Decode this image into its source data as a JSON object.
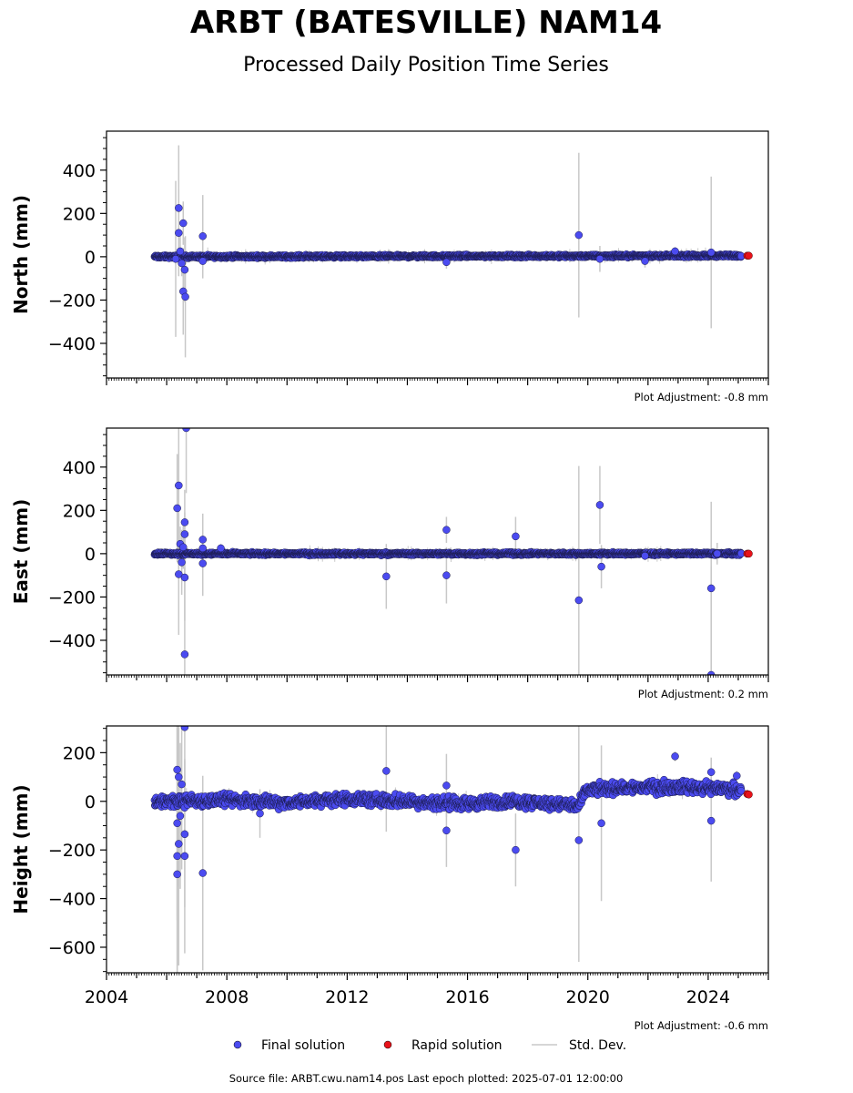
{
  "title": "ARBT (BATESVILLE) NAM14",
  "subtitle": "Processed Daily Position Time Series",
  "colors": {
    "final": "#4b4bf0",
    "rapid": "#e8121a",
    "stddev": "#c8c8c8"
  },
  "chart_data": [
    {
      "type": "scatter",
      "ylabel": "North (mm)",
      "xlim": [
        2004,
        2026
      ],
      "ylim": [
        -560,
        580
      ],
      "yticks": [
        "400",
        "200",
        "0",
        "−200",
        "−400"
      ],
      "ytick_values": [
        400,
        200,
        0,
        -200,
        -400
      ],
      "adjustment": "Plot Adjustment: -0.8 mm",
      "baseline": [
        [
          2005.6,
          0
        ],
        [
          2025.1,
          5
        ]
      ],
      "noise": 3,
      "outliers": [
        [
          2006.4,
          225,
          290
        ],
        [
          2006.4,
          110,
          200
        ],
        [
          2006.55,
          155,
          100
        ],
        [
          2006.55,
          -160,
          200
        ],
        [
          2006.62,
          -185,
          280
        ],
        [
          2006.6,
          -60,
          150
        ],
        [
          2006.5,
          -30,
          60
        ],
        [
          2006.45,
          25,
          70
        ],
        [
          2007.2,
          95,
          190
        ],
        [
          2007.2,
          -20,
          80
        ],
        [
          2006.3,
          -10,
          360
        ],
        [
          2015.3,
          -25,
          30
        ],
        [
          2019.7,
          100,
          380
        ],
        [
          2020.4,
          -10,
          60
        ],
        [
          2021.9,
          -20,
          30
        ],
        [
          2022.9,
          25,
          20
        ],
        [
          2024.1,
          20,
          350
        ]
      ],
      "rapid": [
        [
          2025.3,
          5
        ],
        [
          2025.35,
          5
        ]
      ]
    },
    {
      "type": "scatter",
      "ylabel": "East (mm)",
      "xlim": [
        2004,
        2026
      ],
      "ylim": [
        -560,
        580
      ],
      "yticks": [
        "400",
        "200",
        "0",
        "−200",
        "−400"
      ],
      "ytick_values": [
        400,
        200,
        0,
        -200,
        -400
      ],
      "adjustment": "Plot Adjustment: 0.2 mm",
      "baseline": [
        [
          2005.6,
          0
        ],
        [
          2025.1,
          0
        ]
      ],
      "noise": 3,
      "outliers": [
        [
          2006.65,
          580,
          300
        ],
        [
          2006.4,
          315,
          300
        ],
        [
          2006.35,
          210,
          250
        ],
        [
          2006.6,
          145,
          150
        ],
        [
          2006.6,
          90,
          100
        ],
        [
          2006.45,
          45,
          80
        ],
        [
          2006.55,
          30,
          100
        ],
        [
          2006.4,
          -95,
          280
        ],
        [
          2006.6,
          -110,
          200
        ],
        [
          2006.6,
          -465,
          400
        ],
        [
          2006.5,
          -40,
          150
        ],
        [
          2007.2,
          65,
          120
        ],
        [
          2007.2,
          25,
          60
        ],
        [
          2007.2,
          -45,
          150
        ],
        [
          2007.8,
          25,
          20
        ],
        [
          2013.3,
          -105,
          150
        ],
        [
          2015.3,
          110,
          60
        ],
        [
          2015.3,
          -100,
          130
        ],
        [
          2017.6,
          80,
          90
        ],
        [
          2019.7,
          -215,
          620
        ],
        [
          2020.4,
          225,
          180
        ],
        [
          2020.45,
          -60,
          100
        ],
        [
          2021.9,
          -10,
          20
        ],
        [
          2024.1,
          -160,
          400
        ],
        [
          2024.1,
          -560,
          500
        ],
        [
          2024.3,
          0,
          50
        ]
      ],
      "rapid": [
        [
          2025.3,
          0
        ],
        [
          2025.35,
          0
        ]
      ]
    },
    {
      "type": "scatter",
      "ylabel": "Height (mm)",
      "xlim": [
        2004,
        2026
      ],
      "ylim": [
        -705,
        310
      ],
      "yticks": [
        "200",
        "0",
        "−200",
        "−400",
        "−600"
      ],
      "ytick_values": [
        200,
        0,
        -200,
        -400,
        -600
      ],
      "xticks": [
        "2004",
        "2008",
        "2012",
        "2016",
        "2020",
        "2024"
      ],
      "xtick_values": [
        2004,
        2008,
        2012,
        2016,
        2020,
        2024
      ],
      "adjustment": "Plot Adjustment: -0.6 mm",
      "baseline": [
        [
          2005.6,
          0
        ],
        [
          2008,
          5
        ],
        [
          2010,
          -5
        ],
        [
          2012,
          10
        ],
        [
          2014,
          0
        ],
        [
          2016,
          -10
        ],
        [
          2017.5,
          0
        ],
        [
          2019,
          -10
        ],
        [
          2019.7,
          -20
        ],
        [
          2019.95,
          45
        ],
        [
          2021,
          55
        ],
        [
          2023,
          60
        ],
        [
          2025.1,
          50
        ]
      ],
      "noise": 12,
      "outliers": [
        [
          2006.35,
          130,
          600
        ],
        [
          2006.4,
          100,
          450
        ],
        [
          2006.5,
          70,
          350
        ],
        [
          2006.45,
          -60,
          300
        ],
        [
          2006.35,
          -90,
          400
        ],
        [
          2006.35,
          -225,
          600
        ],
        [
          2006.4,
          -175,
          500
        ],
        [
          2006.35,
          -300,
          700
        ],
        [
          2006.6,
          -135,
          300
        ],
        [
          2006.6,
          -225,
          400
        ],
        [
          2006.6,
          305,
          250
        ],
        [
          2007.2,
          -295,
          400
        ],
        [
          2009.1,
          -50,
          100
        ],
        [
          2013.3,
          125,
          250
        ],
        [
          2015.3,
          65,
          130
        ],
        [
          2015.3,
          -120,
          150
        ],
        [
          2017.6,
          -200,
          150
        ],
        [
          2019.7,
          -160,
          500
        ],
        [
          2020.45,
          -90,
          320
        ],
        [
          2022.9,
          185,
          20
        ],
        [
          2024.1,
          120,
          60
        ],
        [
          2024.1,
          -80,
          250
        ],
        [
          2024.95,
          105,
          20
        ]
      ],
      "rapid": [
        [
          2025.3,
          30
        ],
        [
          2025.35,
          28
        ]
      ]
    }
  ],
  "legend": {
    "final": "Final solution",
    "rapid": "Rapid solution",
    "stddev": "Std. Dev."
  },
  "footer": "Source file: ARBT.cwu.nam14.pos  Last epoch plotted: 2025-07-01 12:00:00"
}
